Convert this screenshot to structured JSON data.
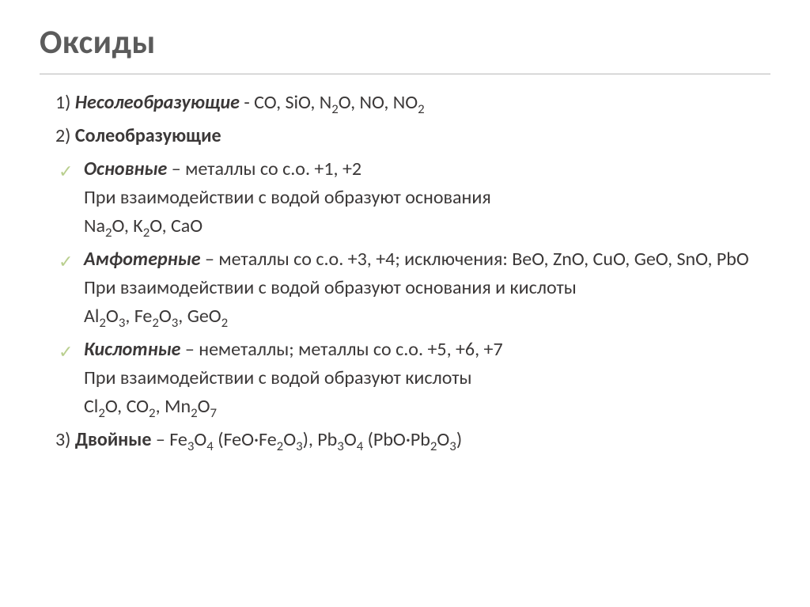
{
  "colors": {
    "title": "#5b5b5b",
    "body_text": "#3b3838",
    "divider": "#b8b8b8",
    "check": "#b9cf8e",
    "background": "#ffffff"
  },
  "typography": {
    "title_fontsize": 42,
    "body_fontsize": 24,
    "font_family": "Calibri"
  },
  "title": "Оксиды",
  "item1": {
    "number": "1)",
    "label": "Несолеобразующие",
    "rest": " - CO, SiO, N",
    "sub1": "2",
    "rest2": "O, NO, NO",
    "sub2": "2"
  },
  "item2": {
    "number": "2)",
    "label": "Солеобразующие"
  },
  "basic": {
    "label": "Основные",
    "desc": " – металлы со с.о. +1, +2",
    "line2a": "При взаимодействии с водой образуют основания",
    "line3_p1": "Na",
    "line3_s1": "2",
    "line3_p2": "O, K",
    "line3_s2": "2",
    "line3_p3": "O, CaO"
  },
  "amph": {
    "label": "Амфотерные",
    "desc": " – металлы со с.о. +3, +4; исключения: BeO, ZnO, CuO, GeO, SnO, PbO",
    "line2": "При взаимодействии с водой образуют основания и кислоты",
    "line3_p1": "Al",
    "line3_s1": "2",
    "line3_p2": "O",
    "line3_s2": "3",
    "line3_p3": ", Fe",
    "line3_s3": "2",
    "line3_p4": "O",
    "line3_s4": "3",
    "line3_p5": ", GeO",
    "line3_s5": "2"
  },
  "acid": {
    "label": "Кислотные",
    "desc": " – неметаллы; металлы со с.о. +5, +6, +7",
    "line2": "При взаимодействии с водой образуют кислоты",
    "line3_p1": "Cl",
    "line3_s1": "2",
    "line3_p2": "O, CO",
    "line3_s2": "2",
    "line3_p3": ", Mn",
    "line3_s3": "2",
    "line3_p4": "O",
    "line3_s4": "7"
  },
  "item3": {
    "number": "3)",
    "label": "Двойные",
    "p1": " – Fe",
    "s1": "3",
    "p2": "O",
    "s2": "4",
    "p3": " (FeO·Fe",
    "s3": "2",
    "p4": "O",
    "s4": "3",
    "p5": "), Pb",
    "s5": "3",
    "p6": "O",
    "s6": "4",
    "p7": " (PbO·Pb",
    "s7": "2",
    "p8": "O",
    "s8": "3",
    "p9": ")"
  },
  "checkmark": "✓"
}
